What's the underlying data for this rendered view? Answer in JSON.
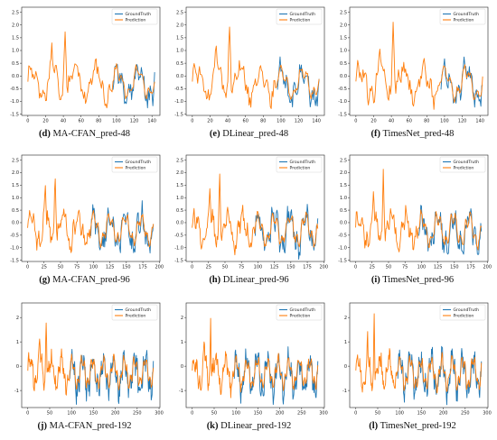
{
  "colors": {
    "ground_truth": "#1f77b4",
    "prediction": "#ff7f0e",
    "axis": "#222222"
  },
  "chart_data": [
    {
      "id": "d",
      "type": "line",
      "caption_letter": "(d)",
      "caption_text": "MA-CFAN_pred-48",
      "horizon": 48,
      "xlim": [
        -7,
        149
      ],
      "ylim": [
        -1.55,
        2.7
      ],
      "xticks": [
        0,
        20,
        40,
        60,
        80,
        100,
        120,
        140
      ],
      "xtick_labels": [
        "0",
        "20",
        "40",
        "60",
        "80",
        "100",
        "120",
        "140"
      ],
      "yticks": [
        -1.5,
        -1.0,
        -0.5,
        0.0,
        0.5,
        1.0,
        1.5,
        2.0,
        2.5
      ],
      "ytick_labels": [
        "-1.5",
        "-1.0",
        "-0.5",
        "0.0",
        "0.5",
        "1.0",
        "1.5",
        "2.0",
        "2.5"
      ],
      "legend": {
        "placement": "top-right",
        "entries": [
          "GroundTruth",
          "Prediction"
        ]
      },
      "series": [
        {
          "name": "GroundTruth",
          "x_range": [
            96,
            143
          ]
        },
        {
          "name": "Prediction",
          "x_range": [
            0,
            143
          ]
        }
      ]
    },
    {
      "id": "e",
      "type": "line",
      "caption_letter": "(e)",
      "caption_text": "DLinear_pred-48",
      "horizon": 48,
      "xlim": [
        -7,
        149
      ],
      "ylim": [
        -1.55,
        2.7
      ],
      "xticks": [
        0,
        20,
        40,
        60,
        80,
        100,
        120,
        140
      ],
      "xtick_labels": [
        "0",
        "20",
        "40",
        "60",
        "80",
        "100",
        "120",
        "140"
      ],
      "yticks": [
        -1.5,
        -1.0,
        -0.5,
        0.0,
        0.5,
        1.0,
        1.5,
        2.0,
        2.5
      ],
      "ytick_labels": [
        "-1.5",
        "-1.0",
        "-0.5",
        "0.0",
        "0.5",
        "1.0",
        "1.5",
        "2.0",
        "2.5"
      ],
      "legend": {
        "placement": "top-right",
        "entries": [
          "GroundTruth",
          "Prediction"
        ]
      },
      "series": [
        {
          "name": "GroundTruth",
          "x_range": [
            96,
            143
          ]
        },
        {
          "name": "Prediction",
          "x_range": [
            0,
            143
          ]
        }
      ]
    },
    {
      "id": "f",
      "type": "line",
      "caption_letter": "(f)",
      "caption_text": "TimesNet_pred-48",
      "horizon": 48,
      "xlim": [
        -7,
        149
      ],
      "ylim": [
        -1.55,
        2.7
      ],
      "xticks": [
        0,
        20,
        40,
        60,
        80,
        100,
        120,
        140
      ],
      "xtick_labels": [
        "0",
        "20",
        "40",
        "60",
        "80",
        "100",
        "120",
        "140"
      ],
      "yticks": [
        -1.5,
        -1.0,
        -0.5,
        0.0,
        0.5,
        1.0,
        1.5,
        2.0,
        2.5
      ],
      "ytick_labels": [
        "-1.5",
        "-1.0",
        "-0.5",
        "0.0",
        "0.5",
        "1.0",
        "1.5",
        "2.0",
        "2.5"
      ],
      "legend": {
        "placement": "top-right",
        "entries": [
          "GroundTruth",
          "Prediction"
        ]
      },
      "series": [
        {
          "name": "GroundTruth",
          "x_range": [
            96,
            143
          ]
        },
        {
          "name": "Prediction",
          "x_range": [
            0,
            143
          ]
        }
      ]
    },
    {
      "id": "g",
      "type": "line",
      "caption_letter": "(g)",
      "caption_text": "MA-CFAN_pred-96",
      "horizon": 96,
      "xlim": [
        -9,
        201
      ],
      "ylim": [
        -1.55,
        2.7
      ],
      "xticks": [
        0,
        25,
        50,
        75,
        100,
        125,
        150,
        175,
        200
      ],
      "xtick_labels": [
        "0",
        "25",
        "50",
        "75",
        "100",
        "125",
        "150",
        "175",
        "200"
      ],
      "yticks": [
        -1.5,
        -1.0,
        -0.5,
        0.0,
        0.5,
        1.0,
        1.5,
        2.0,
        2.5
      ],
      "ytick_labels": [
        "-1.5",
        "-1.0",
        "-0.5",
        "0.0",
        "0.5",
        "1.0",
        "1.5",
        "2.0",
        "2.5"
      ],
      "legend": {
        "placement": "top-right",
        "entries": [
          "GroundTruth",
          "Prediction"
        ]
      },
      "series": [
        {
          "name": "GroundTruth",
          "x_range": [
            96,
            191
          ]
        },
        {
          "name": "Prediction",
          "x_range": [
            0,
            191
          ]
        }
      ]
    },
    {
      "id": "h",
      "type": "line",
      "caption_letter": "(h)",
      "caption_text": "DLinear_pred-96",
      "horizon": 96,
      "xlim": [
        -9,
        201
      ],
      "ylim": [
        -1.55,
        2.7
      ],
      "xticks": [
        0,
        25,
        50,
        75,
        100,
        125,
        150,
        175,
        200
      ],
      "xtick_labels": [
        "0",
        "25",
        "50",
        "75",
        "100",
        "125",
        "150",
        "175",
        "200"
      ],
      "yticks": [
        -1.5,
        -1.0,
        -0.5,
        0.0,
        0.5,
        1.0,
        1.5,
        2.0,
        2.5
      ],
      "ytick_labels": [
        "-1.5",
        "-1.0",
        "-0.5",
        "0.0",
        "0.5",
        "1.0",
        "1.5",
        "2.0",
        "2.5"
      ],
      "legend": {
        "placement": "top-right",
        "entries": [
          "GroundTruth",
          "Prediction"
        ]
      },
      "series": [
        {
          "name": "GroundTruth",
          "x_range": [
            96,
            191
          ]
        },
        {
          "name": "Prediction",
          "x_range": [
            0,
            191
          ]
        }
      ]
    },
    {
      "id": "i",
      "type": "line",
      "caption_letter": "(i)",
      "caption_text": "TimesNet_pred-96",
      "horizon": 96,
      "xlim": [
        -9,
        201
      ],
      "ylim": [
        -1.55,
        2.7
      ],
      "xticks": [
        0,
        25,
        50,
        75,
        100,
        125,
        150,
        175,
        200
      ],
      "xtick_labels": [
        "0",
        "25",
        "50",
        "75",
        "100",
        "125",
        "150",
        "175",
        "200"
      ],
      "yticks": [
        -1.5,
        -1.0,
        -0.5,
        0.0,
        0.5,
        1.0,
        1.5,
        2.0,
        2.5
      ],
      "ytick_labels": [
        "-1.5",
        "-1.0",
        "-0.5",
        "0.0",
        "0.5",
        "1.0",
        "1.5",
        "2.0",
        "2.5"
      ],
      "legend": {
        "placement": "top-right",
        "entries": [
          "GroundTruth",
          "Prediction"
        ]
      },
      "series": [
        {
          "name": "GroundTruth",
          "x_range": [
            96,
            191
          ]
        },
        {
          "name": "Prediction",
          "x_range": [
            0,
            191
          ]
        }
      ]
    },
    {
      "id": "j",
      "type": "line",
      "caption_letter": "(j)",
      "caption_text": "MA-CFAN_pred-192",
      "horizon": 192,
      "xlim": [
        -14,
        302
      ],
      "ylim": [
        -1.7,
        2.6
      ],
      "xticks": [
        0,
        50,
        100,
        150,
        200,
        250,
        300
      ],
      "xtick_labels": [
        "0",
        "50",
        "100",
        "150",
        "200",
        "250",
        "300"
      ],
      "yticks": [
        -1,
        0,
        1,
        2
      ],
      "ytick_labels": [
        "-1",
        "0",
        "1",
        "2"
      ],
      "legend": {
        "placement": "top-right",
        "entries": [
          "GroundTruth",
          "Prediction"
        ]
      },
      "series": [
        {
          "name": "GroundTruth",
          "x_range": [
            96,
            287
          ]
        },
        {
          "name": "Prediction",
          "x_range": [
            0,
            287
          ]
        }
      ]
    },
    {
      "id": "k",
      "type": "line",
      "caption_letter": "(k)",
      "caption_text": "DLinear_pred-192",
      "horizon": 192,
      "xlim": [
        -14,
        302
      ],
      "ylim": [
        -1.7,
        2.6
      ],
      "xticks": [
        0,
        50,
        100,
        150,
        200,
        250,
        300
      ],
      "xtick_labels": [
        "0",
        "50",
        "100",
        "150",
        "200",
        "250",
        "300"
      ],
      "yticks": [
        -1,
        0,
        1,
        2
      ],
      "ytick_labels": [
        "-1",
        "0",
        "1",
        "2"
      ],
      "legend": {
        "placement": "top-right",
        "entries": [
          "GroundTruth",
          "Prediction"
        ]
      },
      "series": [
        {
          "name": "GroundTruth",
          "x_range": [
            96,
            287
          ]
        },
        {
          "name": "Prediction",
          "x_range": [
            0,
            287
          ]
        }
      ]
    },
    {
      "id": "l",
      "type": "line",
      "caption_letter": "(l)",
      "caption_text": "TimesNet_pred-192",
      "horizon": 192,
      "xlim": [
        -14,
        302
      ],
      "ylim": [
        -1.7,
        2.6
      ],
      "xticks": [
        0,
        50,
        100,
        150,
        200,
        250,
        300
      ],
      "xtick_labels": [
        "0",
        "50",
        "100",
        "150",
        "200",
        "250",
        "300"
      ],
      "yticks": [
        -1,
        0,
        1,
        2
      ],
      "ytick_labels": [
        "-1",
        "0",
        "1",
        "2"
      ],
      "legend": {
        "placement": "top-right",
        "entries": [
          "GroundTruth",
          "Prediction"
        ]
      },
      "series": [
        {
          "name": "GroundTruth",
          "x_range": [
            96,
            287
          ]
        },
        {
          "name": "Prediction",
          "x_range": [
            0,
            287
          ]
        }
      ]
    }
  ]
}
